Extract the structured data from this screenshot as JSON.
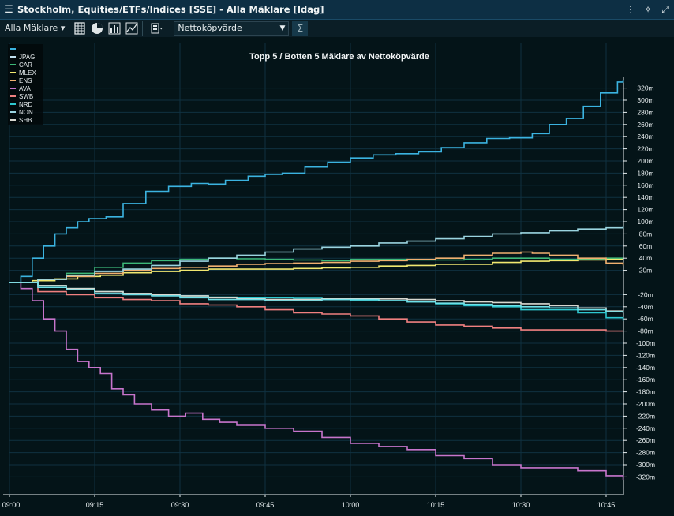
{
  "window": {
    "title": "Stockholm, Equities/ETFs/Indices [SSE] - Alla Mäklare [Idag]"
  },
  "toolbar": {
    "broker_select": "Alla Mäklare",
    "measure_select": "Nettoköpvärde"
  },
  "icons": [
    "menu-icon",
    "more-icon",
    "unlink-icon",
    "fullscreen-icon",
    "table-view-icon",
    "pie-chart-icon",
    "bar-chart-icon",
    "line-chart-icon",
    "settings-icon",
    "sum-icon"
  ],
  "chart_data": {
    "type": "line",
    "title": "Topp 5 / Botten 5 Mäklare av Nettoköpvärde",
    "x_ticks": [
      "09:00",
      "09:15",
      "09:30",
      "09:45",
      "10:00",
      "10:15",
      "10:30",
      "10:45"
    ],
    "y_ticks": [
      "320m",
      "300m",
      "280m",
      "260m",
      "240m",
      "220m",
      "200m",
      "180m",
      "160m",
      "140m",
      "120m",
      "100m",
      "80m",
      "60m",
      "40m",
      "20m",
      "-20m",
      "-40m",
      "-60m",
      "-80m",
      "-100m",
      "-120m",
      "-140m",
      "-160m",
      "-180m",
      "-200m",
      "-220m",
      "-240m",
      "-260m",
      "-280m",
      "-300m",
      "-320m"
    ],
    "y_range": [
      -335,
      335
    ],
    "x_range_minutes": [
      0,
      108
    ],
    "series": [
      {
        "name": "JPAG",
        "color": "#3bb3e0",
        "points": [
          [
            0,
            0
          ],
          [
            2,
            10
          ],
          [
            4,
            40
          ],
          [
            6,
            60
          ],
          [
            8,
            80
          ],
          [
            10,
            90
          ],
          [
            12,
            100
          ],
          [
            14,
            105
          ],
          [
            17,
            108
          ],
          [
            20,
            130
          ],
          [
            24,
            150
          ],
          [
            28,
            158
          ],
          [
            32,
            163
          ],
          [
            35,
            162
          ],
          [
            38,
            168
          ],
          [
            42,
            175
          ],
          [
            45,
            178
          ],
          [
            48,
            180
          ],
          [
            52,
            190
          ],
          [
            56,
            198
          ],
          [
            60,
            205
          ],
          [
            64,
            210
          ],
          [
            68,
            212
          ],
          [
            72,
            215
          ],
          [
            76,
            222
          ],
          [
            80,
            230
          ],
          [
            84,
            237
          ],
          [
            88,
            238
          ],
          [
            92,
            245
          ],
          [
            95,
            260
          ],
          [
            98,
            270
          ],
          [
            101,
            290
          ],
          [
            104,
            312
          ],
          [
            107,
            330
          ],
          [
            108,
            333
          ]
        ]
      },
      {
        "name": "CAR",
        "color": "#3cb878",
        "points": [
          [
            0,
            0
          ],
          [
            5,
            5
          ],
          [
            10,
            15
          ],
          [
            15,
            25
          ],
          [
            20,
            32
          ],
          [
            25,
            36
          ],
          [
            30,
            38
          ],
          [
            35,
            40
          ],
          [
            40,
            39
          ],
          [
            45,
            38
          ],
          [
            50,
            37
          ],
          [
            55,
            36
          ],
          [
            60,
            38
          ],
          [
            65,
            38
          ],
          [
            70,
            37
          ],
          [
            75,
            37
          ],
          [
            80,
            38
          ],
          [
            85,
            40
          ],
          [
            90,
            40
          ],
          [
            95,
            38
          ],
          [
            100,
            38
          ],
          [
            105,
            40
          ],
          [
            108,
            40
          ]
        ]
      },
      {
        "name": "MLEX",
        "color": "#f1e870",
        "points": [
          [
            0,
            0
          ],
          [
            4,
            3
          ],
          [
            8,
            6
          ],
          [
            12,
            10
          ],
          [
            16,
            12
          ],
          [
            20,
            16
          ],
          [
            25,
            18
          ],
          [
            30,
            20
          ],
          [
            35,
            22
          ],
          [
            40,
            22
          ],
          [
            45,
            22
          ],
          [
            50,
            23
          ],
          [
            55,
            24
          ],
          [
            60,
            25
          ],
          [
            65,
            27
          ],
          [
            70,
            28
          ],
          [
            75,
            30
          ],
          [
            80,
            30
          ],
          [
            85,
            33
          ],
          [
            90,
            35
          ],
          [
            95,
            36
          ],
          [
            100,
            37
          ],
          [
            105,
            38
          ],
          [
            108,
            38
          ]
        ]
      },
      {
        "name": "ENS",
        "color": "#f0b070",
        "points": [
          [
            0,
            0
          ],
          [
            5,
            5
          ],
          [
            10,
            10
          ],
          [
            15,
            15
          ],
          [
            20,
            20
          ],
          [
            25,
            23
          ],
          [
            30,
            25
          ],
          [
            35,
            27
          ],
          [
            40,
            30
          ],
          [
            45,
            31
          ],
          [
            50,
            32
          ],
          [
            55,
            33
          ],
          [
            60,
            35
          ],
          [
            65,
            36
          ],
          [
            70,
            38
          ],
          [
            75,
            40
          ],
          [
            80,
            45
          ],
          [
            85,
            48
          ],
          [
            90,
            50
          ],
          [
            92,
            48
          ],
          [
            95,
            45
          ],
          [
            100,
            40
          ],
          [
            105,
            32
          ],
          [
            108,
            28
          ]
        ]
      },
      {
        "name": "AVA",
        "color": "#c775cc",
        "points": [
          [
            0,
            0
          ],
          [
            2,
            -10
          ],
          [
            4,
            -30
          ],
          [
            6,
            -60
          ],
          [
            8,
            -80
          ],
          [
            10,
            -110
          ],
          [
            12,
            -130
          ],
          [
            14,
            -140
          ],
          [
            16,
            -150
          ],
          [
            18,
            -175
          ],
          [
            20,
            -185
          ],
          [
            22,
            -200
          ],
          [
            25,
            -210
          ],
          [
            28,
            -220
          ],
          [
            31,
            -215
          ],
          [
            34,
            -225
          ],
          [
            37,
            -230
          ],
          [
            40,
            -235
          ],
          [
            45,
            -240
          ],
          [
            50,
            -245
          ],
          [
            55,
            -255
          ],
          [
            60,
            -265
          ],
          [
            65,
            -270
          ],
          [
            70,
            -275
          ],
          [
            75,
            -285
          ],
          [
            80,
            -290
          ],
          [
            85,
            -300
          ],
          [
            90,
            -305
          ],
          [
            95,
            -305
          ],
          [
            100,
            -310
          ],
          [
            105,
            -318
          ],
          [
            108,
            -325
          ]
        ]
      },
      {
        "name": "SWB",
        "color": "#f08080",
        "points": [
          [
            0,
            0
          ],
          [
            5,
            -15
          ],
          [
            10,
            -20
          ],
          [
            15,
            -25
          ],
          [
            20,
            -28
          ],
          [
            25,
            -30
          ],
          [
            30,
            -35
          ],
          [
            35,
            -37
          ],
          [
            40,
            -40
          ],
          [
            45,
            -45
          ],
          [
            50,
            -50
          ],
          [
            55,
            -52
          ],
          [
            60,
            -55
          ],
          [
            65,
            -60
          ],
          [
            70,
            -65
          ],
          [
            75,
            -70
          ],
          [
            80,
            -72
          ],
          [
            85,
            -75
          ],
          [
            90,
            -78
          ],
          [
            95,
            -78
          ],
          [
            100,
            -78
          ],
          [
            105,
            -80
          ],
          [
            108,
            -80
          ]
        ]
      },
      {
        "name": "NRD",
        "color": "#2ec8d0",
        "points": [
          [
            0,
            0
          ],
          [
            5,
            -5
          ],
          [
            10,
            -10
          ],
          [
            15,
            -15
          ],
          [
            20,
            -18
          ],
          [
            25,
            -20
          ],
          [
            30,
            -22
          ],
          [
            35,
            -24
          ],
          [
            40,
            -25
          ],
          [
            45,
            -25
          ],
          [
            50,
            -26
          ],
          [
            55,
            -28
          ],
          [
            60,
            -30
          ],
          [
            65,
            -30
          ],
          [
            70,
            -32
          ],
          [
            75,
            -35
          ],
          [
            80,
            -38
          ],
          [
            85,
            -40
          ],
          [
            90,
            -45
          ],
          [
            95,
            -45
          ],
          [
            100,
            -50
          ],
          [
            105,
            -58
          ],
          [
            108,
            -63
          ]
        ]
      },
      {
        "name": "NON",
        "color": "#9ad4e0",
        "points": [
          [
            0,
            0
          ],
          [
            5,
            5
          ],
          [
            10,
            12
          ],
          [
            15,
            18
          ],
          [
            20,
            22
          ],
          [
            25,
            28
          ],
          [
            30,
            35
          ],
          [
            35,
            40
          ],
          [
            40,
            45
          ],
          [
            45,
            50
          ],
          [
            50,
            55
          ],
          [
            55,
            58
          ],
          [
            60,
            60
          ],
          [
            65,
            65
          ],
          [
            70,
            68
          ],
          [
            75,
            72
          ],
          [
            80,
            76
          ],
          [
            85,
            80
          ],
          [
            90,
            82
          ],
          [
            95,
            85
          ],
          [
            100,
            88
          ],
          [
            105,
            90
          ],
          [
            108,
            92
          ]
        ]
      },
      {
        "name": "SHB",
        "color": "#d8d8d0",
        "points": [
          [
            0,
            0
          ],
          [
            5,
            -5
          ],
          [
            10,
            -10
          ],
          [
            15,
            -15
          ],
          [
            20,
            -18
          ],
          [
            25,
            -20
          ],
          [
            30,
            -22
          ],
          [
            35,
            -25
          ],
          [
            40,
            -27
          ],
          [
            45,
            -28
          ],
          [
            50,
            -28
          ],
          [
            55,
            -27
          ],
          [
            60,
            -27
          ],
          [
            65,
            -27
          ],
          [
            70,
            -28
          ],
          [
            75,
            -30
          ],
          [
            80,
            -32
          ],
          [
            85,
            -33
          ],
          [
            90,
            -35
          ],
          [
            95,
            -38
          ],
          [
            100,
            -42
          ],
          [
            105,
            -47
          ],
          [
            108,
            -50
          ]
        ]
      },
      {
        "name": "",
        "color": "#6fe0e8",
        "points": [
          [
            0,
            0
          ],
          [
            5,
            -8
          ],
          [
            10,
            -12
          ],
          [
            15,
            -18
          ],
          [
            20,
            -20
          ],
          [
            25,
            -22
          ],
          [
            30,
            -25
          ],
          [
            35,
            -28
          ],
          [
            40,
            -28
          ],
          [
            45,
            -30
          ],
          [
            50,
            -30
          ],
          [
            55,
            -28
          ],
          [
            60,
            -28
          ],
          [
            65,
            -30
          ],
          [
            70,
            -32
          ],
          [
            75,
            -34
          ],
          [
            80,
            -36
          ],
          [
            85,
            -38
          ],
          [
            90,
            -40
          ],
          [
            95,
            -42
          ],
          [
            100,
            -45
          ],
          [
            105,
            -48
          ],
          [
            108,
            -50
          ]
        ]
      }
    ],
    "legend_entries": [
      "",
      "JPAG",
      "CAR",
      "MLEX",
      "ENS",
      "AVA",
      "SWB",
      "NRD",
      "NON",
      "SHB"
    ],
    "legend_colors": [
      "#3bb3e0",
      "#c0e0f0",
      "#3cb878",
      "#f1e870",
      "#f0b070",
      "#c775cc",
      "#f08080",
      "#2ec8d0",
      "#9ad4e0",
      "#d8d8d0"
    ],
    "grid": true,
    "legend_position": "top-left"
  }
}
